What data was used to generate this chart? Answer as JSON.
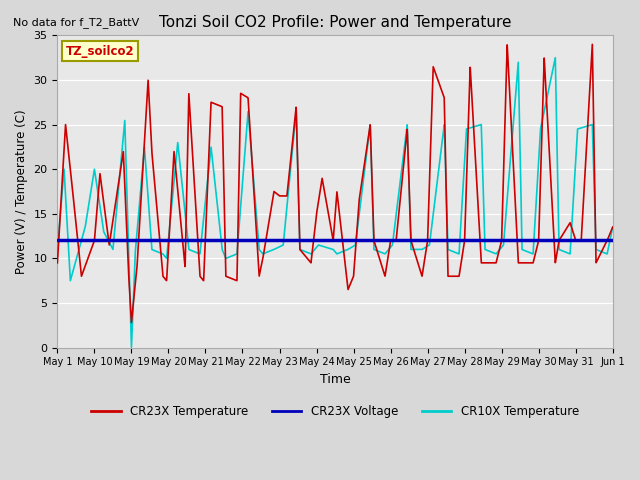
{
  "title": "Tonzi Soil CO2 Profile: Power and Temperature",
  "subtitle": "No data for f_T2_BattV",
  "ylabel": "Power (V) / Temperature (C)",
  "xlabel": "Time",
  "ylim": [
    0,
    35
  ],
  "fig_facecolor": "#d8d8d8",
  "plot_facecolor": "#e8e8e8",
  "voltage_line_value": 12.1,
  "legend_labels": [
    "CR23X Temperature",
    "CR23X Voltage",
    "CR10X Temperature"
  ],
  "legend_colors": [
    "#cc0000",
    "#0000bb",
    "#00cccc"
  ],
  "inset_label": "TZ_soilco2",
  "x_tick_labels": [
    "May 1",
    "May 10",
    "May 19",
    "May 20",
    "May 21",
    "May 22",
    "May 23",
    "May 24",
    "May 25",
    "May 26",
    "May 27",
    "May 28",
    "May 29",
    "May 30",
    "May 31",
    "Jun 1"
  ],
  "x_tick_positions": [
    0,
    1,
    2,
    3,
    4,
    5,
    6,
    7,
    8,
    9,
    10,
    11,
    12,
    13,
    14,
    15
  ]
}
